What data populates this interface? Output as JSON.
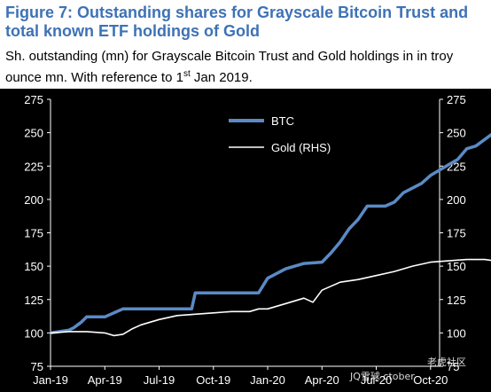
{
  "figure": {
    "title": "Figure 7: Outstanding shares for Grayscale Bitcoin Trust and total known ETF holdings of Gold",
    "subtitle_main": "Sh. outstanding (mn) for Grayscale Bitcoin Trust and Gold holdings in in troy ounce mn. With reference to 1",
    "subtitle_sup": "st",
    "subtitle_end": " Jan 2019."
  },
  "watermark": {
    "left_text": "JQ雪球 ctober",
    "right_text": "老虎社区"
  },
  "chart_data": {
    "type": "line",
    "x_categories": [
      "Jan-19",
      "Apr-19",
      "Jul-19",
      "Oct-19",
      "Jan-20",
      "Apr-20",
      "Jul-20",
      "Oct-20"
    ],
    "ylim_left": [
      75,
      275
    ],
    "ylim_right": [
      75,
      275
    ],
    "yticks": [
      75,
      100,
      125,
      150,
      175,
      200,
      225,
      250,
      275
    ],
    "legend": [
      "BTC",
      "Gold (RHS)"
    ],
    "legend_position": "top-center",
    "grid": false,
    "colors": {
      "BTC": "#5b8ac5",
      "Gold (RHS)": "#ffffff"
    },
    "series": [
      {
        "name": "BTC",
        "axis": "left",
        "points": [
          [
            0.0,
            100
          ],
          [
            0.5,
            101
          ],
          [
            1.0,
            102
          ],
          [
            1.3,
            104
          ],
          [
            1.5,
            106
          ],
          [
            1.7,
            108
          ],
          [
            2.0,
            112
          ],
          [
            3.0,
            112
          ],
          [
            4.0,
            118
          ],
          [
            5.0,
            118
          ],
          [
            6.0,
            118
          ],
          [
            7.0,
            118
          ],
          [
            7.8,
            118
          ],
          [
            8.0,
            130
          ],
          [
            10.0,
            130
          ],
          [
            11.0,
            130
          ],
          [
            11.5,
            130
          ],
          [
            12.0,
            141
          ],
          [
            13.0,
            148
          ],
          [
            14.0,
            152
          ],
          [
            15.0,
            153
          ],
          [
            15.5,
            160
          ],
          [
            16.0,
            168
          ],
          [
            16.5,
            178
          ],
          [
            17.0,
            185
          ],
          [
            17.5,
            195
          ],
          [
            18.5,
            195
          ],
          [
            19.0,
            198
          ],
          [
            19.5,
            205
          ],
          [
            20.5,
            212
          ],
          [
            21.0,
            218
          ],
          [
            21.5,
            222
          ],
          [
            22.5,
            230
          ],
          [
            23.0,
            238
          ],
          [
            23.5,
            240
          ],
          [
            24.0,
            245
          ],
          [
            24.5,
            250
          ]
        ]
      },
      {
        "name": "Gold (RHS)",
        "axis": "right",
        "points": [
          [
            0.0,
            100
          ],
          [
            1.0,
            101
          ],
          [
            2.0,
            101
          ],
          [
            3.0,
            100
          ],
          [
            3.5,
            98
          ],
          [
            4.0,
            99
          ],
          [
            4.5,
            103
          ],
          [
            5.0,
            106
          ],
          [
            6.0,
            110
          ],
          [
            7.0,
            113
          ],
          [
            8.0,
            114
          ],
          [
            9.0,
            115
          ],
          [
            10.0,
            116
          ],
          [
            11.0,
            116
          ],
          [
            11.5,
            118
          ],
          [
            12.0,
            118
          ],
          [
            12.5,
            120
          ],
          [
            13.0,
            122
          ],
          [
            14.0,
            126
          ],
          [
            14.5,
            123
          ],
          [
            15.0,
            132
          ],
          [
            15.5,
            135
          ],
          [
            16.0,
            138
          ],
          [
            17.0,
            140
          ],
          [
            18.0,
            143
          ],
          [
            19.0,
            146
          ],
          [
            20.0,
            150
          ],
          [
            21.0,
            153
          ],
          [
            22.0,
            154
          ],
          [
            23.0,
            155
          ],
          [
            24.0,
            155
          ],
          [
            24.5,
            154
          ]
        ]
      }
    ]
  }
}
